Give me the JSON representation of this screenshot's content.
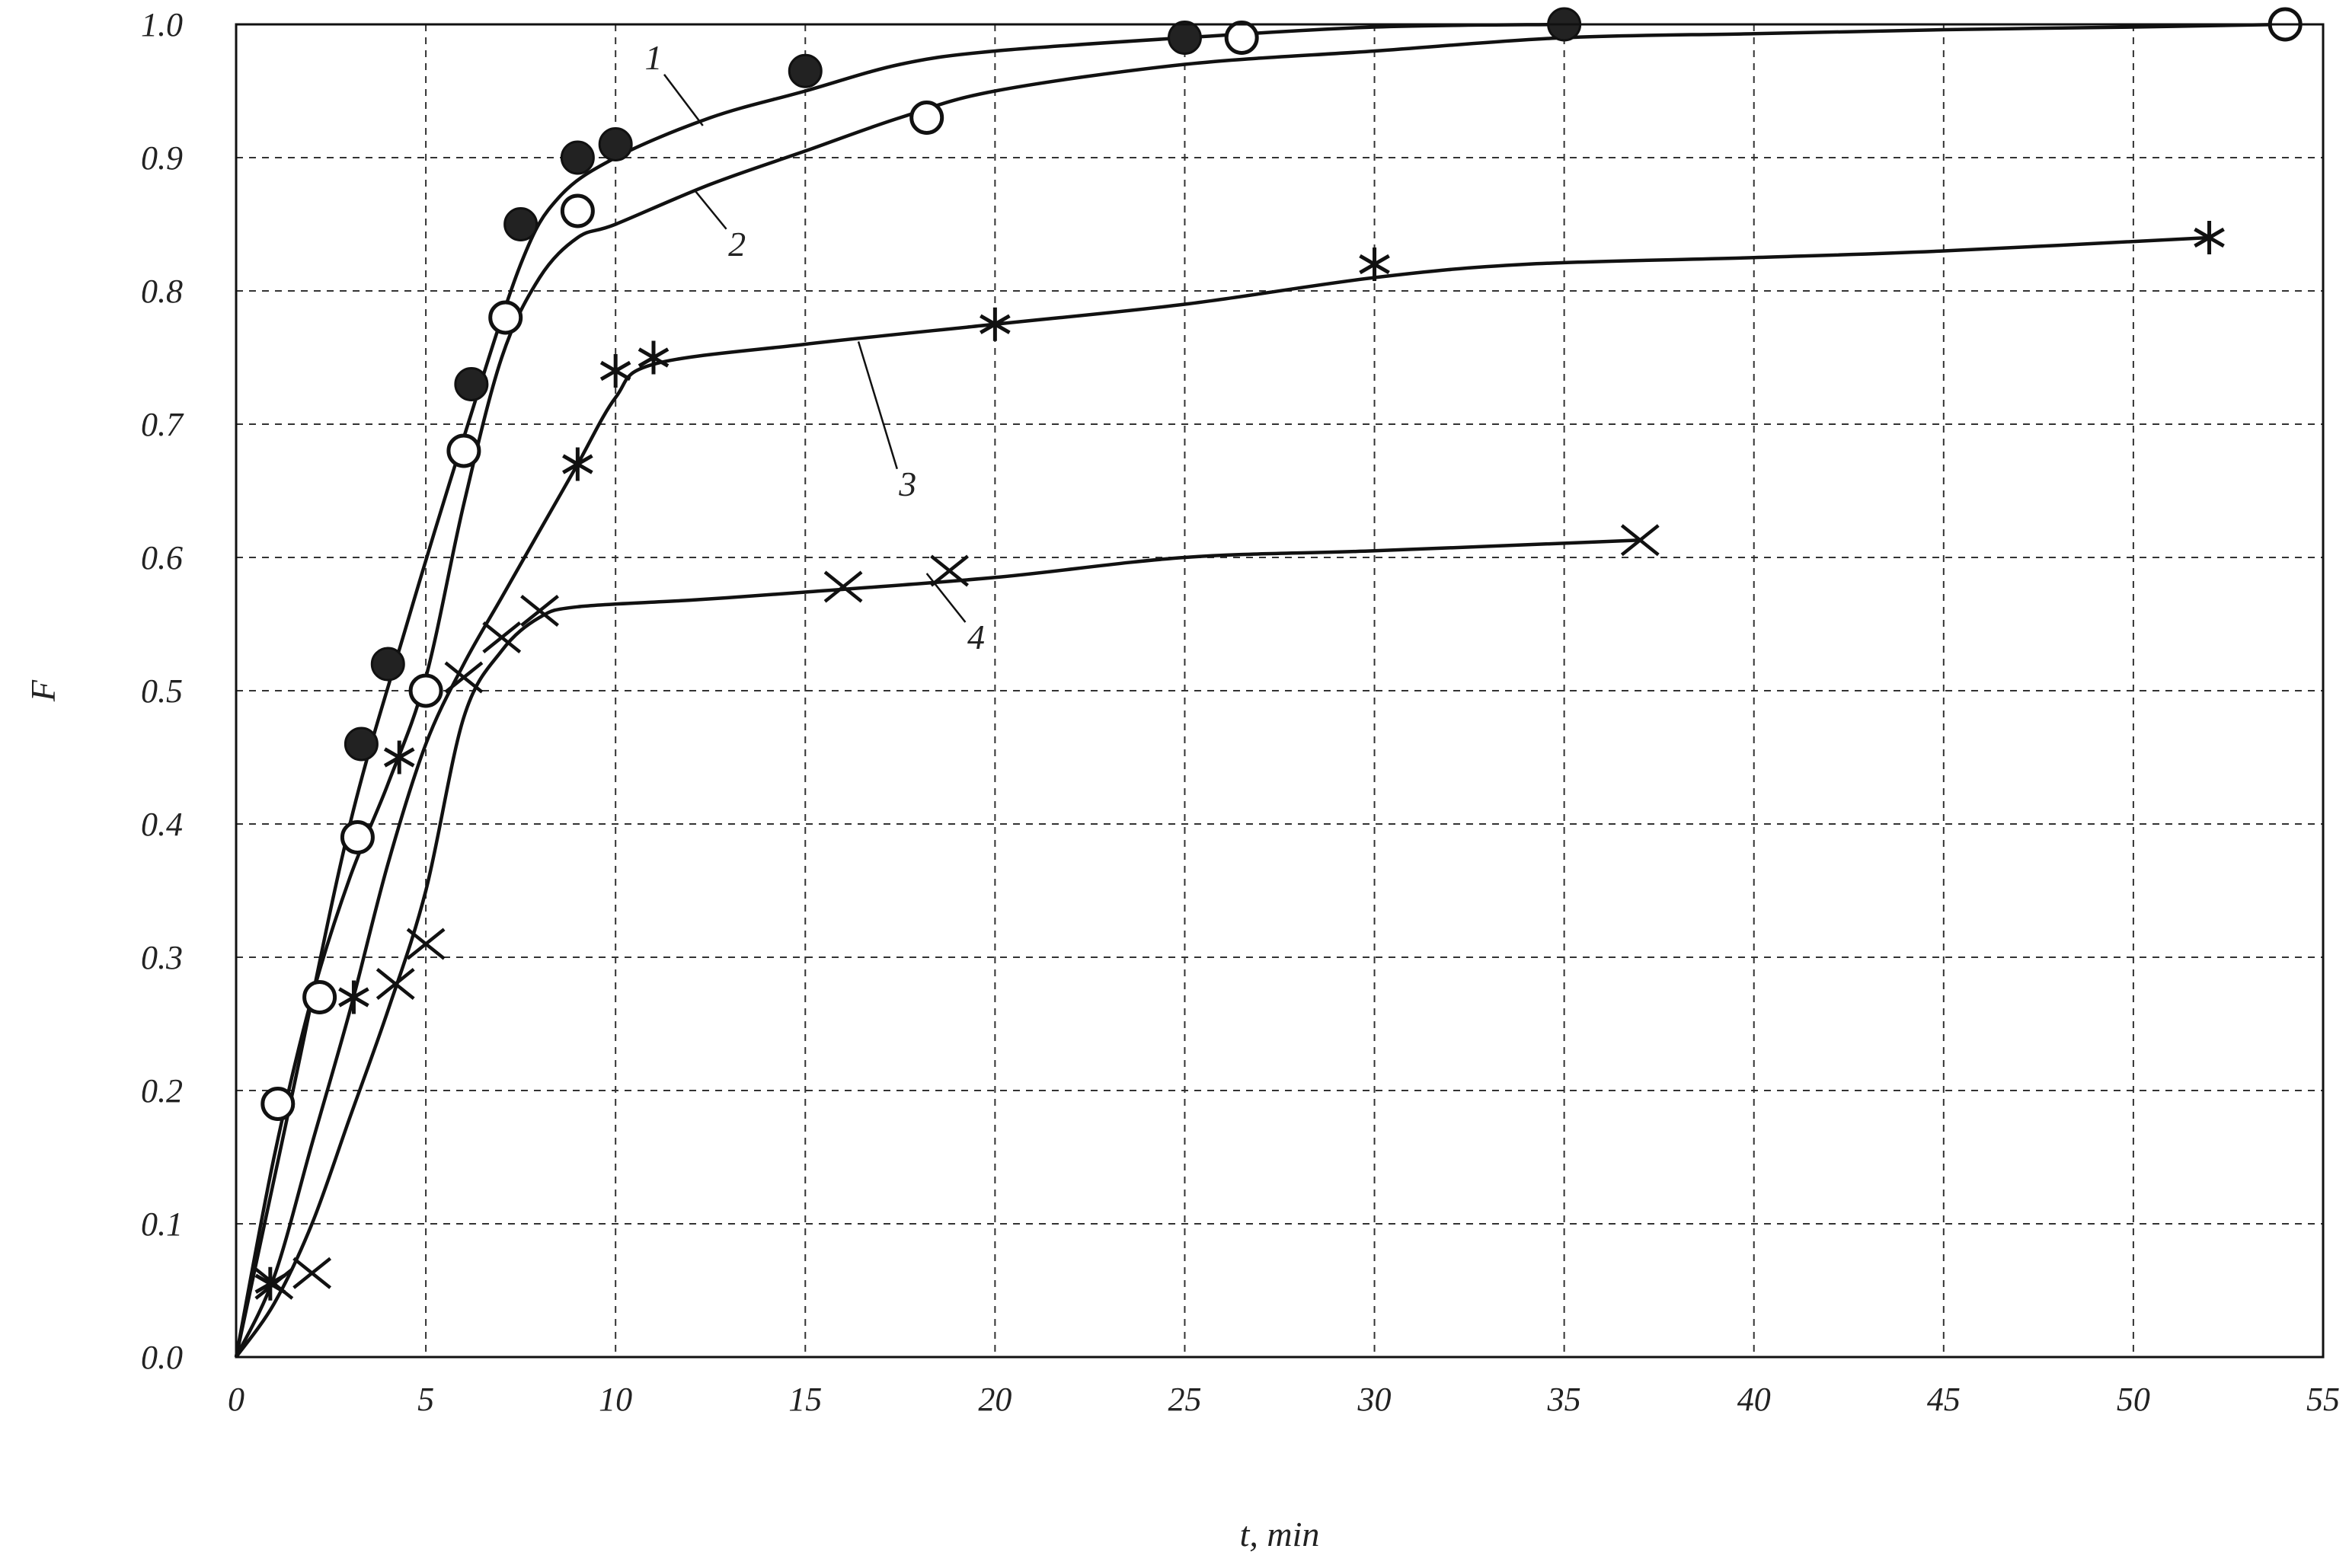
{
  "chart_data": {
    "type": "scatter",
    "title": "",
    "xlabel": "t, min",
    "ylabel": "F",
    "xlim": [
      0,
      55
    ],
    "ylim": [
      0,
      1.0
    ],
    "x_ticks": [
      "0",
      "5",
      "10",
      "15",
      "20",
      "25",
      "30",
      "35",
      "40",
      "45",
      "50",
      "55"
    ],
    "y_ticks": [
      "0.0",
      "0.1",
      "0.2",
      "0.3",
      "0.4",
      "0.5",
      "0.6",
      "0.7",
      "0.8",
      "0.9",
      "1.0"
    ],
    "grid": true,
    "grid_style": "dashed",
    "series": [
      {
        "label": "1",
        "marker": "filled-circle",
        "points": [
          [
            3.3,
            0.46
          ],
          [
            4.0,
            0.52
          ],
          [
            6.2,
            0.73
          ],
          [
            7.5,
            0.85
          ],
          [
            9.0,
            0.9
          ],
          [
            10.0,
            0.91
          ],
          [
            15.0,
            0.965
          ],
          [
            25.0,
            0.99
          ],
          [
            35.0,
            1.0
          ]
        ],
        "curve": [
          [
            0,
            0
          ],
          [
            1.5,
            0.2
          ],
          [
            3,
            0.4
          ],
          [
            4.5,
            0.55
          ],
          [
            6,
            0.69
          ],
          [
            7.5,
            0.82
          ],
          [
            8.5,
            0.87
          ],
          [
            10,
            0.9
          ],
          [
            12.5,
            0.93
          ],
          [
            15,
            0.95
          ],
          [
            17.5,
            0.97
          ],
          [
            20,
            0.98
          ],
          [
            25,
            0.99
          ],
          [
            30,
            0.998
          ],
          [
            35,
            1.0
          ]
        ]
      },
      {
        "label": "2",
        "marker": "open-circle",
        "points": [
          [
            1.1,
            0.19
          ],
          [
            2.2,
            0.27
          ],
          [
            3.2,
            0.39
          ],
          [
            5.0,
            0.5
          ],
          [
            6.0,
            0.68
          ],
          [
            7.1,
            0.78
          ],
          [
            9.0,
            0.86
          ],
          [
            18.2,
            0.93
          ],
          [
            26.5,
            0.99
          ],
          [
            54.0,
            1.0
          ]
        ],
        "curve": [
          [
            0,
            0
          ],
          [
            1,
            0.15
          ],
          [
            2,
            0.27
          ],
          [
            3,
            0.36
          ],
          [
            4,
            0.43
          ],
          [
            5,
            0.51
          ],
          [
            6,
            0.64
          ],
          [
            7,
            0.75
          ],
          [
            8,
            0.81
          ],
          [
            9,
            0.84
          ],
          [
            10,
            0.85
          ],
          [
            12.5,
            0.88
          ],
          [
            15,
            0.905
          ],
          [
            17.5,
            0.93
          ],
          [
            20,
            0.95
          ],
          [
            25,
            0.97
          ],
          [
            30,
            0.98
          ],
          [
            35,
            0.99
          ],
          [
            40,
            0.993
          ],
          [
            45,
            0.996
          ],
          [
            50,
            0.998
          ],
          [
            54,
            1.0
          ]
        ]
      },
      {
        "label": "3",
        "marker": "asterisk",
        "points": [
          [
            0.9,
            0.055
          ],
          [
            3.1,
            0.27
          ],
          [
            4.3,
            0.45
          ],
          [
            9.0,
            0.67
          ],
          [
            10.0,
            0.74
          ],
          [
            11.0,
            0.75
          ],
          [
            20.0,
            0.775
          ],
          [
            30.0,
            0.82
          ],
          [
            52.0,
            0.84
          ]
        ],
        "curve": [
          [
            0,
            0
          ],
          [
            1,
            0.06
          ],
          [
            2,
            0.16
          ],
          [
            3,
            0.26
          ],
          [
            4,
            0.37
          ],
          [
            5,
            0.46
          ],
          [
            6,
            0.52
          ],
          [
            7,
            0.57
          ],
          [
            8,
            0.62
          ],
          [
            9,
            0.67
          ],
          [
            10,
            0.72
          ],
          [
            11,
            0.745
          ],
          [
            15,
            0.76
          ],
          [
            20,
            0.775
          ],
          [
            25,
            0.79
          ],
          [
            30,
            0.81
          ],
          [
            34,
            0.82
          ],
          [
            40,
            0.825
          ],
          [
            45,
            0.83
          ],
          [
            52,
            0.84
          ]
        ]
      },
      {
        "label": "4",
        "marker": "cross",
        "points": [
          [
            1.0,
            0.055
          ],
          [
            2.0,
            0.063
          ],
          [
            4.2,
            0.28
          ],
          [
            5.0,
            0.31
          ],
          [
            6.0,
            0.51
          ],
          [
            7.0,
            0.54
          ],
          [
            8.0,
            0.56
          ],
          [
            16.0,
            0.578
          ],
          [
            18.8,
            0.59
          ],
          [
            37.0,
            0.613
          ]
        ],
        "curve": [
          [
            0,
            0
          ],
          [
            1,
            0.04
          ],
          [
            2,
            0.1
          ],
          [
            3,
            0.18
          ],
          [
            4,
            0.26
          ],
          [
            5,
            0.35
          ],
          [
            6,
            0.48
          ],
          [
            7,
            0.53
          ],
          [
            8,
            0.555
          ],
          [
            9,
            0.563
          ],
          [
            12,
            0.568
          ],
          [
            15,
            0.574
          ],
          [
            20,
            0.585
          ],
          [
            25,
            0.6
          ],
          [
            30,
            0.605
          ],
          [
            37,
            0.613
          ]
        ]
      }
    ],
    "curve_labels": [
      {
        "text": "1",
        "x": 11.0,
        "y": 0.975,
        "leader_to": [
          12.3,
          0.924
        ]
      },
      {
        "text": "2",
        "x": 13.2,
        "y": 0.835,
        "leader_to": [
          12.1,
          0.875
        ]
      },
      {
        "text": "3",
        "x": 17.7,
        "y": 0.655,
        "leader_to": [
          16.4,
          0.762
        ]
      },
      {
        "text": "4",
        "x": 19.5,
        "y": 0.54,
        "leader_to": [
          18.2,
          0.588
        ]
      }
    ]
  }
}
